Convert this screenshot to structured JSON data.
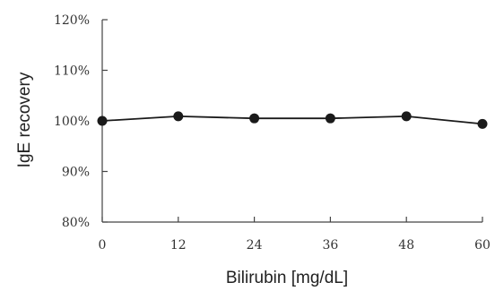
{
  "chart_data": {
    "type": "line",
    "title": "",
    "xlabel": "Bilirubin [mg/dL]",
    "ylabel": "IgE recovery",
    "x": [
      0,
      12,
      24,
      36,
      48,
      60
    ],
    "series": [
      {
        "values": [
          100.0,
          100.9,
          100.5,
          100.5,
          100.9,
          99.4
        ]
      }
    ],
    "xlim": [
      0,
      60
    ],
    "ylim": [
      80,
      120
    ],
    "xticks": [
      0,
      12,
      24,
      36,
      48,
      60
    ],
    "xtick_labels": [
      "0",
      "12",
      "24",
      "36",
      "48",
      "60"
    ],
    "yticks": [
      80,
      90,
      100,
      110,
      120
    ],
    "ytick_labels": [
      "80%",
      "90%",
      "100%",
      "110%",
      "120%"
    ],
    "grid": false,
    "legend": "none",
    "colors": {
      "line": "#1a1a1a",
      "marker": "#1a1a1a",
      "axis": "#444444"
    }
  }
}
